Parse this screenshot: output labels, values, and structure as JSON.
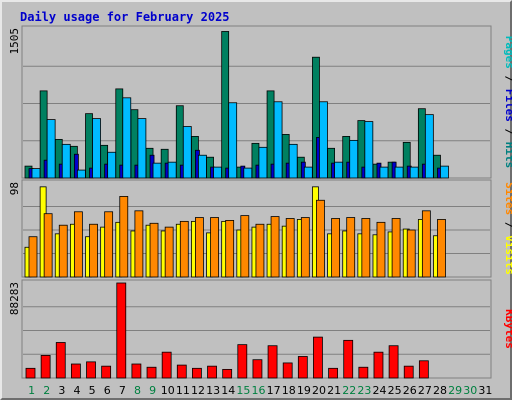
{
  "chart_data": {
    "type": "bar",
    "title": "Daily usage for February 2025",
    "days": [
      "1",
      "2",
      "3",
      "4",
      "5",
      "6",
      "7",
      "8",
      "9",
      "10",
      "11",
      "12",
      "13",
      "14",
      "15",
      "16",
      "17",
      "18",
      "19",
      "20",
      "21",
      "22",
      "23",
      "24",
      "25",
      "26",
      "27",
      "28",
      "29",
      "30",
      "31"
    ],
    "weekend_days": [
      1,
      2,
      8,
      9,
      15,
      16,
      22,
      23,
      29,
      30
    ],
    "panels": [
      {
        "id": "hits",
        "scale_label": "1505",
        "ymax": 1505,
        "legend": [
          {
            "text": "Pages",
            "color": "#00bbbb"
          },
          {
            "text": " / ",
            "color": "#000000"
          },
          {
            "text": "Files",
            "color": "#0000cc"
          },
          {
            "text": " / ",
            "color": "#000000"
          },
          {
            "text": "Hits",
            "color": "#008080"
          }
        ],
        "series": [
          {
            "name": "Hits",
            "color": "#008060",
            "values": [
              120,
              880,
              390,
              320,
              650,
              330,
              900,
              690,
              300,
              290,
              730,
              420,
              210,
              1480,
              110,
              350,
              880,
              440,
              210,
              1220,
              300,
              420,
              580,
              140,
              160,
              360,
              700,
              230,
              0,
              0,
              0
            ]
          },
          {
            "name": "Files",
            "color": "#0000cc",
            "values": [
              95,
              180,
              140,
              240,
              100,
              140,
              130,
              130,
              230,
              150,
              130,
              280,
              110,
              100,
              120,
              130,
              140,
              150,
              160,
              410,
              150,
              160,
              110,
              150,
              160,
              120,
              140,
              100,
              0,
              0,
              0
            ]
          },
          {
            "name": "Pages",
            "color": "#00bbff",
            "values": [
              95,
              590,
              340,
              80,
              600,
              260,
              810,
              600,
              150,
              160,
              520,
              230,
              110,
              760,
              100,
              310,
              770,
              340,
              110,
              770,
              160,
              380,
              570,
              110,
              110,
              110,
              640,
              120,
              0,
              0,
              0
            ]
          }
        ]
      },
      {
        "id": "visits",
        "scale_label": "98",
        "ymax": 98,
        "legend": [
          {
            "text": "Sites",
            "color": "#ff8800"
          },
          {
            "text": " / ",
            "color": "#000000"
          },
          {
            "text": "Visits",
            "color": "#ffff00"
          }
        ],
        "series": [
          {
            "name": "Visits",
            "color": "#ffff00",
            "values": [
              31,
              94,
              45,
              55,
              42,
              52,
              57,
              48,
              54,
              48,
              55,
              58,
              46,
              58,
              49,
              52,
              55,
              53,
              60,
              94,
              45,
              48,
              45,
              44,
              47,
              50,
              60,
              43,
              0,
              0,
              0
            ]
          },
          {
            "name": "Sites",
            "color": "#ff8800",
            "values": [
              42,
              66,
              54,
              68,
              55,
              68,
              84,
              69,
              56,
              52,
              58,
              62,
              62,
              59,
              64,
              55,
              63,
              61,
              62,
              80,
              61,
              62,
              61,
              57,
              61,
              49,
              69,
              60,
              0,
              0,
              0
            ]
          }
        ]
      },
      {
        "id": "kbytes",
        "scale_label": "88283",
        "ymax": 88283,
        "legend": [
          {
            "text": "KBytes",
            "color": "#ff0000"
          }
        ],
        "series": [
          {
            "name": "KBytes",
            "color": "#ff0000",
            "values": [
              9000,
              21000,
              33000,
              13000,
              15000,
              11000,
              88283,
              13000,
              10000,
              24000,
              12000,
              9000,
              11000,
              8000,
              31000,
              17000,
              30000,
              14000,
              20000,
              38000,
              9000,
              35000,
              10000,
              24000,
              30000,
              11000,
              16000,
              0,
              0,
              0,
              0
            ]
          }
        ]
      }
    ],
    "colors": {
      "background": "#c0c0c0",
      "grid": "#808080",
      "title": "#0000cc",
      "weekday_label": "#000000",
      "weekend_label": "#008040"
    }
  }
}
